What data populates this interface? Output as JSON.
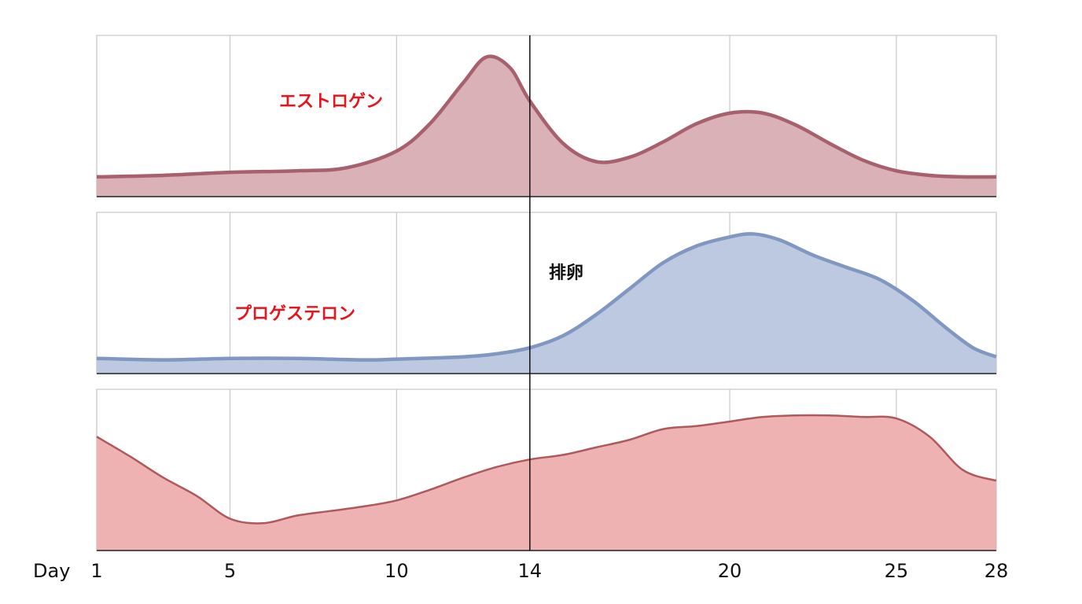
{
  "chart_data": {
    "type": "area",
    "xlabel": "Day",
    "xlim": [
      1,
      28
    ],
    "xticks": [
      1,
      5,
      10,
      14,
      20,
      25,
      28
    ],
    "ylim": [
      0,
      100
    ],
    "grid": true,
    "series": [
      {
        "name": "エストロゲン",
        "color": "#a8606d",
        "fill": "#d9b1b7",
        "x": [
          1,
          3,
          5,
          7,
          8.5,
          10,
          11,
          12,
          12.7,
          13.4,
          14,
          15,
          16,
          17,
          18,
          19,
          20,
          21,
          22,
          23,
          24,
          25,
          26,
          27,
          28
        ],
        "values": [
          13,
          14,
          16,
          17,
          19,
          30,
          48,
          75,
          92,
          85,
          63,
          35,
          23,
          26,
          36,
          48,
          55,
          55,
          47,
          35,
          24,
          17,
          14,
          13,
          13
        ]
      },
      {
        "name": "プロゲステロン",
        "color": "#8097c2",
        "fill": "#bdc9e0",
        "x": [
          1,
          3,
          5,
          7,
          9,
          10,
          12,
          13,
          14,
          15,
          16,
          17,
          18,
          19,
          20,
          20.7,
          21.5,
          22.5,
          23.5,
          24.5,
          25.5,
          26.5,
          27.3,
          28
        ],
        "values": [
          10,
          9,
          10,
          10,
          9,
          9.5,
          11,
          13,
          17,
          25,
          39,
          56,
          73,
          84,
          90,
          92,
          88,
          78,
          70,
          62,
          48,
          30,
          17,
          11
        ]
      },
      {
        "color": "#b0585c",
        "fill": "#efb2b2",
        "x": [
          1,
          2,
          3,
          4,
          5,
          6,
          7,
          8,
          9,
          10,
          11,
          12,
          13,
          14,
          15,
          16,
          17,
          18,
          19,
          20,
          21,
          22,
          23,
          24,
          25,
          26,
          27,
          28
        ],
        "values": [
          75,
          62,
          48,
          36,
          21,
          18,
          23,
          26,
          29,
          33,
          40,
          48,
          55,
          60,
          63,
          68,
          73,
          80,
          82,
          85,
          88,
          89,
          89,
          88,
          87,
          75,
          53,
          46
        ]
      }
    ],
    "ovulation": {
      "x": 14,
      "label": "排卵"
    }
  }
}
